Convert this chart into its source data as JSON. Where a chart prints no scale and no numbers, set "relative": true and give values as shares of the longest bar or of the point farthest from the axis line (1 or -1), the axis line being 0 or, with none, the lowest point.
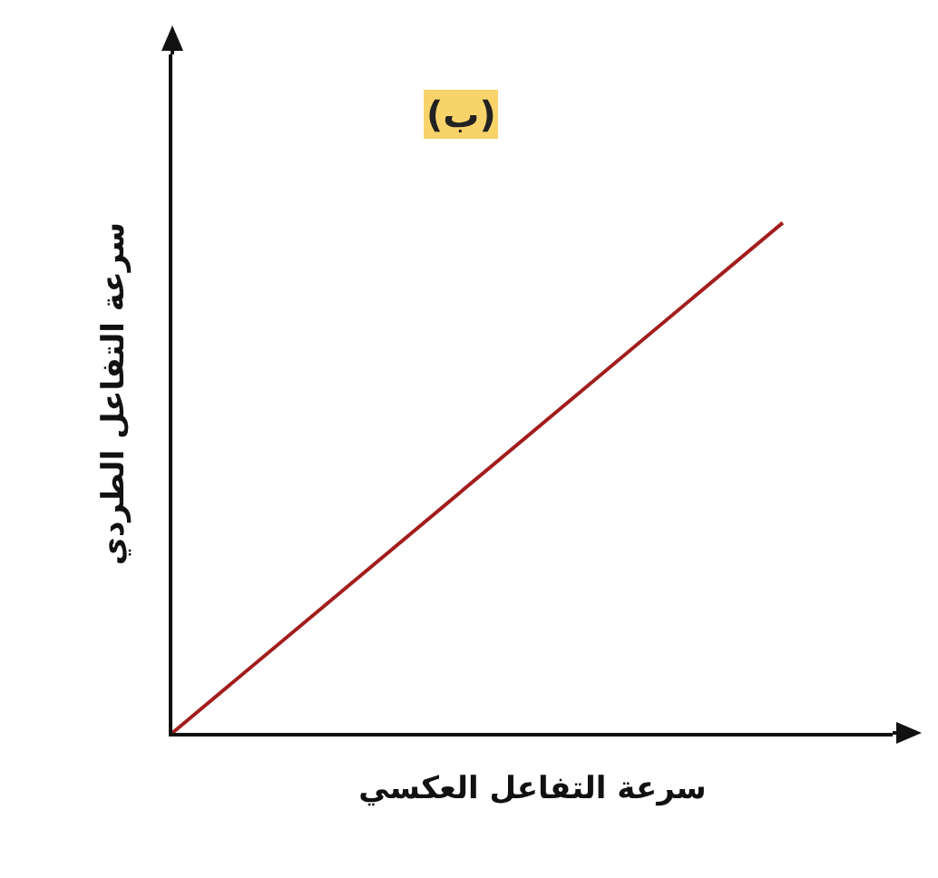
{
  "chart_data": {
    "type": "line",
    "title": "(ب)",
    "xlabel": "سرعة التفاعل العكسي",
    "ylabel": "سرعة التفاعل الطردي",
    "categories": [
      null,
      null
    ],
    "relative": true,
    "series": [
      {
        "color": "#a31d1d",
        "values": [
          0,
          1
        ]
      }
    ],
    "marker": "none",
    "line_style": "solid"
  }
}
